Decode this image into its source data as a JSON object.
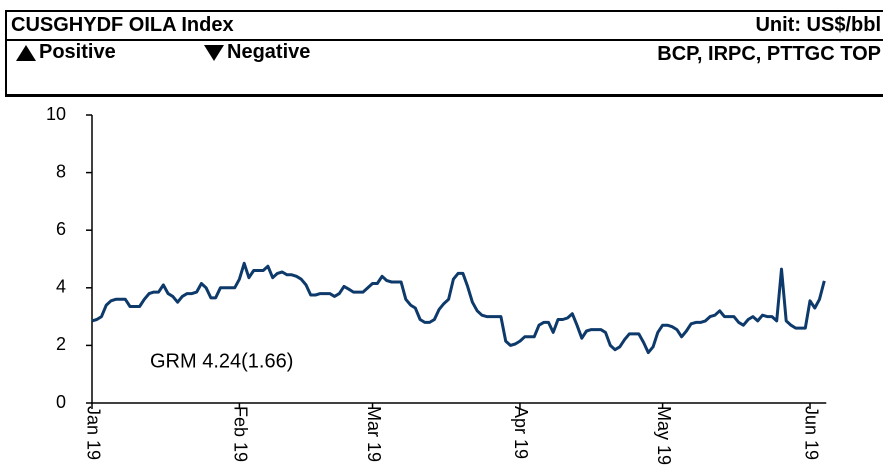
{
  "header": {
    "title": "CUSGHYDF OILA Index",
    "unit": "Unit: US$/bbl",
    "positive": "Positive",
    "negative": "Negative",
    "stocks": "BCP, IRPC, PTTGC TOP"
  },
  "chart_data": {
    "type": "line",
    "color": "#0d3a6a",
    "annotation": "GRM 4.24(1.66)",
    "categories": [
      "Jan 19",
      null,
      null,
      null,
      null,
      null,
      null,
      null,
      null,
      null,
      null,
      null,
      null,
      null,
      null,
      null,
      null,
      null,
      null,
      null,
      null,
      null,
      null,
      null,
      null,
      null,
      null,
      null,
      null,
      null,
      null,
      "Feb 19",
      null,
      null,
      null,
      null,
      null,
      null,
      null,
      null,
      null,
      null,
      null,
      null,
      null,
      null,
      null,
      null,
      null,
      null,
      null,
      null,
      null,
      null,
      null,
      null,
      null,
      null,
      null,
      "Mar 19",
      null,
      null,
      null,
      null,
      null,
      null,
      null,
      null,
      null,
      null,
      null,
      null,
      null,
      null,
      null,
      null,
      null,
      null,
      null,
      null,
      null,
      null,
      null,
      null,
      null,
      null,
      null,
      null,
      null,
      null,
      "Apr 19",
      null,
      null,
      null,
      null,
      null,
      null,
      null,
      null,
      null,
      null,
      null,
      null,
      null,
      null,
      null,
      null,
      null,
      null,
      null,
      null,
      null,
      null,
      null,
      null,
      null,
      null,
      null,
      null,
      null,
      "May 19",
      null,
      null,
      null,
      null,
      null,
      null,
      null,
      null,
      null,
      null,
      null,
      null,
      null,
      null,
      null,
      null,
      null,
      null,
      null,
      null,
      null,
      null,
      null,
      null,
      null,
      null,
      null,
      null,
      null,
      null,
      "Jun 19",
      null,
      null,
      null
    ],
    "values": [
      2.85,
      2.9,
      3.0,
      3.4,
      3.55,
      3.6,
      3.6,
      3.6,
      3.35,
      3.35,
      3.35,
      3.6,
      3.8,
      3.85,
      3.85,
      4.1,
      3.8,
      3.7,
      3.5,
      3.7,
      3.8,
      3.8,
      3.85,
      4.15,
      4.0,
      3.65,
      3.65,
      4.0,
      4.0,
      4.0,
      4.0,
      4.3,
      4.85,
      4.35,
      4.6,
      4.6,
      4.6,
      4.75,
      4.35,
      4.5,
      4.55,
      4.45,
      4.45,
      4.4,
      4.3,
      4.1,
      3.75,
      3.75,
      3.8,
      3.8,
      3.8,
      3.7,
      3.8,
      4.05,
      3.95,
      3.85,
      3.85,
      3.85,
      4.0,
      4.15,
      4.15,
      4.4,
      4.25,
      4.2,
      4.2,
      4.2,
      3.6,
      3.4,
      3.3,
      2.9,
      2.8,
      2.8,
      2.9,
      3.25,
      3.45,
      3.6,
      4.3,
      4.5,
      4.5,
      4.05,
      3.5,
      3.2,
      3.05,
      3.0,
      3.0,
      3.0,
      3.0,
      2.15,
      2.0,
      2.05,
      2.15,
      2.3,
      2.3,
      2.3,
      2.7,
      2.8,
      2.8,
      2.45,
      2.9,
      2.9,
      2.95,
      3.1,
      2.7,
      2.25,
      2.5,
      2.55,
      2.55,
      2.55,
      2.45,
      2.0,
      1.85,
      1.95,
      2.2,
      2.4,
      2.4,
      2.4,
      2.1,
      1.75,
      1.95,
      2.45,
      2.7,
      2.7,
      2.65,
      2.55,
      2.3,
      2.5,
      2.75,
      2.8,
      2.8,
      2.85,
      3.0,
      3.05,
      3.2,
      3.0,
      3.0,
      3.0,
      2.8,
      2.7,
      2.9,
      3.0,
      2.85,
      3.05,
      3.0,
      3.0,
      2.85,
      4.65,
      2.85,
      2.7,
      2.6,
      2.6,
      2.6,
      3.55,
      3.3,
      3.6,
      4.24
    ],
    "ylim": [
      0,
      10
    ],
    "yticks": [
      0,
      2,
      4,
      6,
      8,
      10
    ]
  }
}
